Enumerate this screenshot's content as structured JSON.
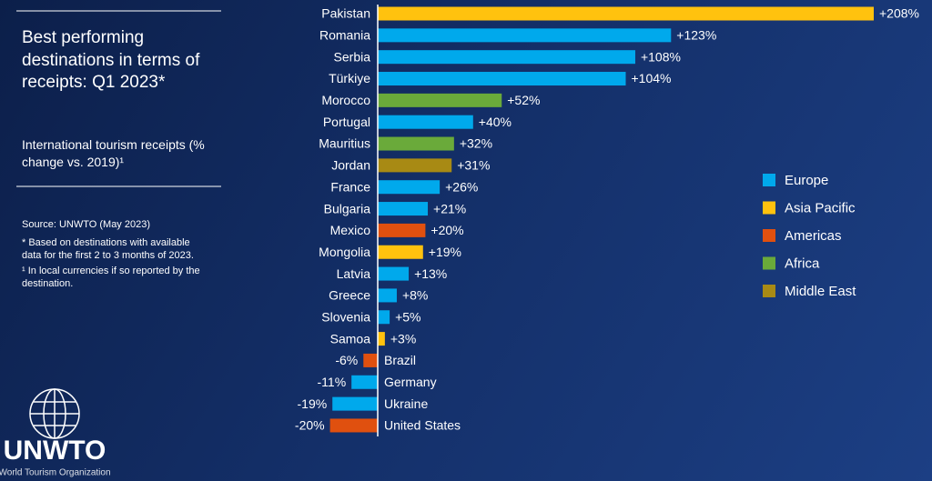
{
  "chart_data": {
    "type": "bar",
    "title": "Best performing destinations in terms of receipts: Q1 2023*",
    "subtitle": "International tourism receipts (% change vs. 2019)¹",
    "notes": [
      "Source: UNWTO (May 2023)",
      "*  Based on destinations with available data for the first 2 to 3 months of 2023.",
      "¹ In local currencies if so reported by the destination."
    ],
    "categories": [
      "Pakistan",
      "Romania",
      "Serbia",
      "Türkiye",
      "Morocco",
      "Portugal",
      "Mauritius",
      "Jordan",
      "France",
      "Bulgaria",
      "Mexico",
      "Mongolia",
      "Latvia",
      "Greece",
      "Slovenia",
      "Samoa",
      "Brazil",
      "Germany",
      "Ukraine",
      "United States"
    ],
    "values": [
      208,
      123,
      108,
      104,
      52,
      40,
      32,
      31,
      26,
      21,
      20,
      19,
      13,
      8,
      5,
      3,
      -6,
      -11,
      -19,
      -20
    ],
    "value_labels": [
      "+208%",
      "+123%",
      "+108%",
      "+104%",
      "+52%",
      "+40%",
      "+32%",
      "+31%",
      "+26%",
      "+21%",
      "+20%",
      "+19%",
      "+13%",
      "+8%",
      "+5%",
      "+3%",
      "-6%",
      "-11%",
      "-19%",
      "-20%"
    ],
    "colors": [
      "#ffc20e",
      "#00a9ec",
      "#00a9ec",
      "#00a9ec",
      "#6aaa3a",
      "#00a9ec",
      "#6aaa3a",
      "#a88a14",
      "#00a9ec",
      "#00a9ec",
      "#e0500f",
      "#ffc20e",
      "#00a9ec",
      "#00a9ec",
      "#00a9ec",
      "#ffc20e",
      "#e0500f",
      "#00a9ec",
      "#00a9ec",
      "#e0500f"
    ],
    "legend": [
      {
        "name": "Europe",
        "color": "#00a9ec"
      },
      {
        "name": "Asia Pacific",
        "color": "#ffc20e"
      },
      {
        "name": "Americas",
        "color": "#e0500f"
      },
      {
        "name": "Africa",
        "color": "#6aaa3a"
      },
      {
        "name": "Middle East",
        "color": "#a88a14"
      }
    ]
  },
  "logo": {
    "name": "UNWTO",
    "tagline": "World Tourism Organization"
  }
}
